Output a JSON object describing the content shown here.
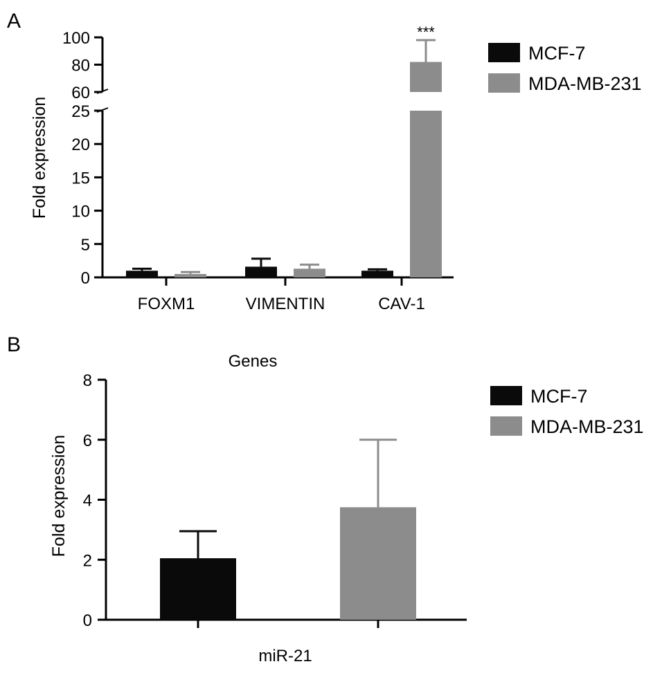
{
  "colors": {
    "MCF-7": "#0a0a0a",
    "MDA-MB-231": "#8c8c8c",
    "axis": "#000000"
  },
  "panels": {
    "A": {
      "letter": "A"
    },
    "B": {
      "letter": "B"
    }
  },
  "chart_data": [
    {
      "panel": "A",
      "type": "bar",
      "ylabel": "Fold expression",
      "y_axis_break": {
        "lower_range": [
          0,
          25
        ],
        "upper_range": [
          60,
          100
        ]
      },
      "lower_ticks": [
        0,
        5,
        10,
        15,
        20,
        25
      ],
      "upper_ticks": [
        60,
        80,
        100
      ],
      "categories": [
        "FOXM1",
        "VIMENTIN",
        "CAV-1"
      ],
      "series": [
        {
          "name": "MCF-7",
          "values": [
            1.0,
            1.6,
            1.0
          ],
          "errors": [
            0.3,
            1.2,
            0.2
          ]
        },
        {
          "name": "MDA-MB-231",
          "values": [
            0.5,
            1.3,
            82
          ],
          "errors": [
            0.3,
            0.6,
            16
          ]
        }
      ],
      "annotations": [
        {
          "category": "CAV-1",
          "series": "MDA-MB-231",
          "text": "***"
        }
      ],
      "legend": {
        "position": "top-right",
        "entries": [
          "MCF-7",
          "MDA-MB-231"
        ]
      }
    },
    {
      "panel": "B",
      "type": "bar",
      "title": "Genes",
      "ylabel": "Fold expression",
      "ylim": [
        0,
        8
      ],
      "yticks": [
        0,
        2,
        4,
        6,
        8
      ],
      "categories": [
        "miR-21"
      ],
      "series": [
        {
          "name": "MCF-7",
          "values": [
            2.05
          ],
          "errors": [
            0.9
          ]
        },
        {
          "name": "MDA-MB-231",
          "values": [
            3.75
          ],
          "errors": [
            2.25
          ]
        }
      ],
      "legend": {
        "position": "top-right",
        "entries": [
          "MCF-7",
          "MDA-MB-231"
        ]
      }
    }
  ]
}
